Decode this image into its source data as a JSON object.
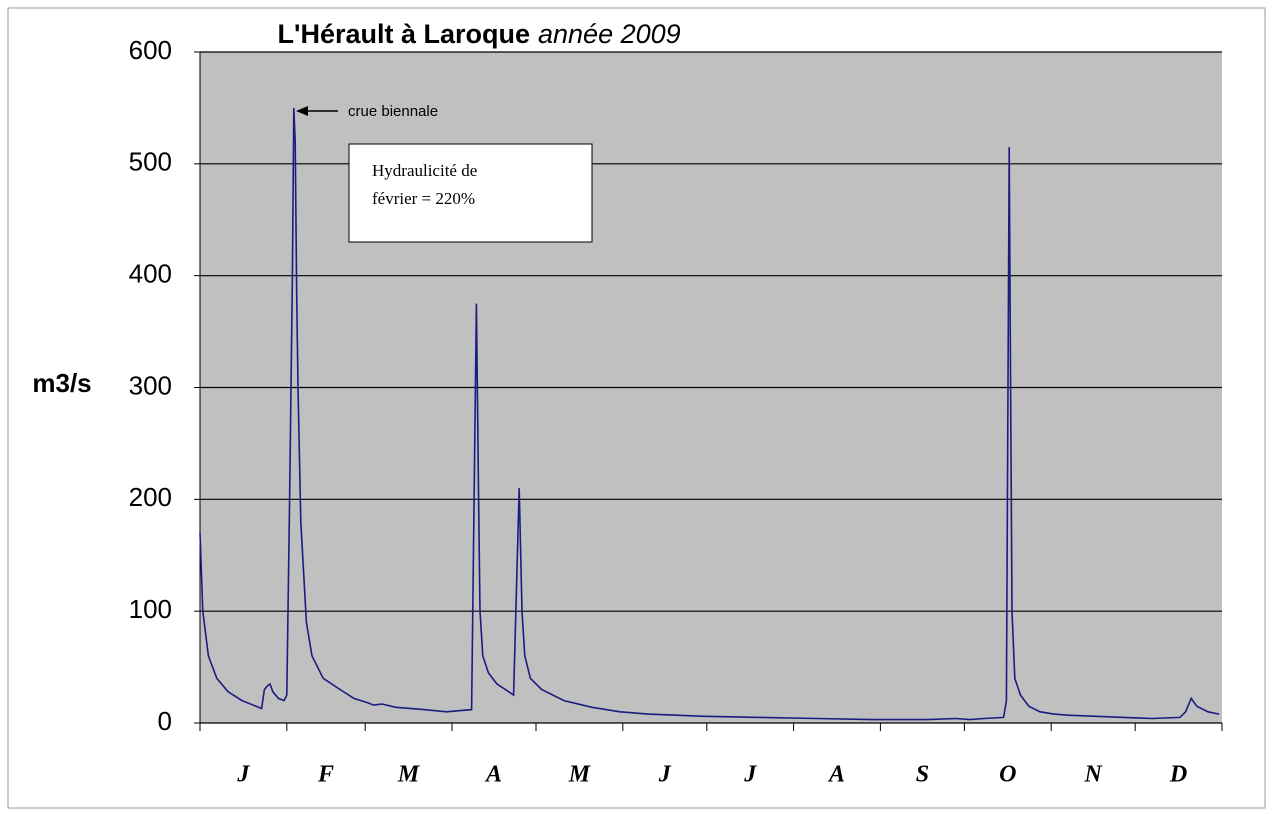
{
  "chart_data": {
    "type": "line",
    "title": "L'Hérault à Laroque",
    "title_italic": "année 2009",
    "y_label": "m3/s",
    "annotation": "crue biennale",
    "note_lines": [
      "Hydraulicité de",
      "février = 220%"
    ],
    "categories": [
      "J",
      "F",
      "M",
      "A",
      "M",
      "J",
      "J",
      "A",
      "S",
      "O",
      "N",
      "D"
    ],
    "xlim": [
      0,
      365
    ],
    "xticks": [
      0,
      31,
      59,
      90,
      120,
      151,
      181,
      212,
      243,
      273,
      304,
      334,
      365
    ],
    "ylim": [
      0,
      600
    ],
    "yticks": [
      0,
      100,
      200,
      300,
      400,
      500,
      600
    ],
    "grid": true,
    "color": "#1c1c80",
    "x": [
      0,
      1,
      3,
      6,
      10,
      15,
      20,
      22,
      23,
      24,
      25,
      26,
      28,
      30,
      31,
      32,
      33,
      33.5,
      34,
      34.5,
      35,
      36,
      38,
      40,
      44,
      50,
      55,
      60,
      62,
      65,
      70,
      80,
      88,
      97,
      98.7,
      99.5,
      100,
      101,
      103,
      106,
      112,
      114,
      115,
      116,
      118,
      122,
      130,
      140,
      150,
      160,
      180,
      200,
      220,
      240,
      260,
      270,
      275,
      280,
      287,
      288,
      289,
      289.5,
      290,
      291,
      293,
      296,
      300,
      305,
      310,
      320,
      330,
      340,
      350,
      352,
      354,
      356,
      360,
      364
    ],
    "values": [
      170,
      100,
      60,
      40,
      28,
      20,
      15,
      13,
      30,
      33,
      35,
      28,
      22,
      20,
      25,
      200,
      400,
      550,
      520,
      390,
      300,
      180,
      90,
      60,
      40,
      30,
      22,
      18,
      16,
      17,
      14,
      12,
      10,
      12,
      375,
      200,
      100,
      60,
      45,
      35,
      25,
      210,
      100,
      60,
      40,
      30,
      20,
      14,
      10,
      8,
      6,
      5,
      4,
      3,
      3,
      4,
      3,
      4,
      5,
      20,
      515,
      300,
      100,
      40,
      25,
      15,
      10,
      8,
      7,
      6,
      5,
      4,
      5,
      10,
      22,
      15,
      10,
      8
    ]
  }
}
